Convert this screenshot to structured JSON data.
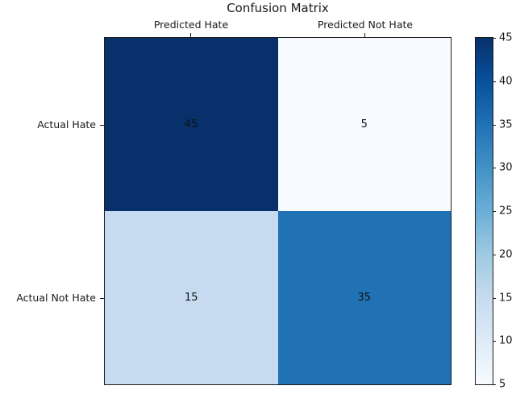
{
  "chart_data": {
    "type": "heatmap",
    "title": "Confusion Matrix",
    "col_labels": [
      "Predicted Hate",
      "Predicted Not Hate"
    ],
    "row_labels": [
      "Actual Hate",
      "Actual Not Hate"
    ],
    "matrix": [
      [
        45,
        5
      ],
      [
        15,
        35
      ]
    ],
    "cell_colors": [
      [
        "#08306b",
        "#f7fbff"
      ],
      [
        "#c6dbef",
        "#2171b5"
      ]
    ],
    "value_text_color": "#111111",
    "colormap": "Blues",
    "colorbar": {
      "min": 5,
      "max": 45,
      "ticks": [
        5,
        10,
        15,
        20,
        25,
        30,
        35,
        40,
        45
      ],
      "gradient_bottom_to_top": [
        "#f7fbff",
        "#deebf7",
        "#c6dbef",
        "#9ecae1",
        "#6baed6",
        "#4292c6",
        "#2171b5",
        "#08519c",
        "#08306b"
      ]
    },
    "grid": false,
    "legend": "colorbar-right"
  }
}
